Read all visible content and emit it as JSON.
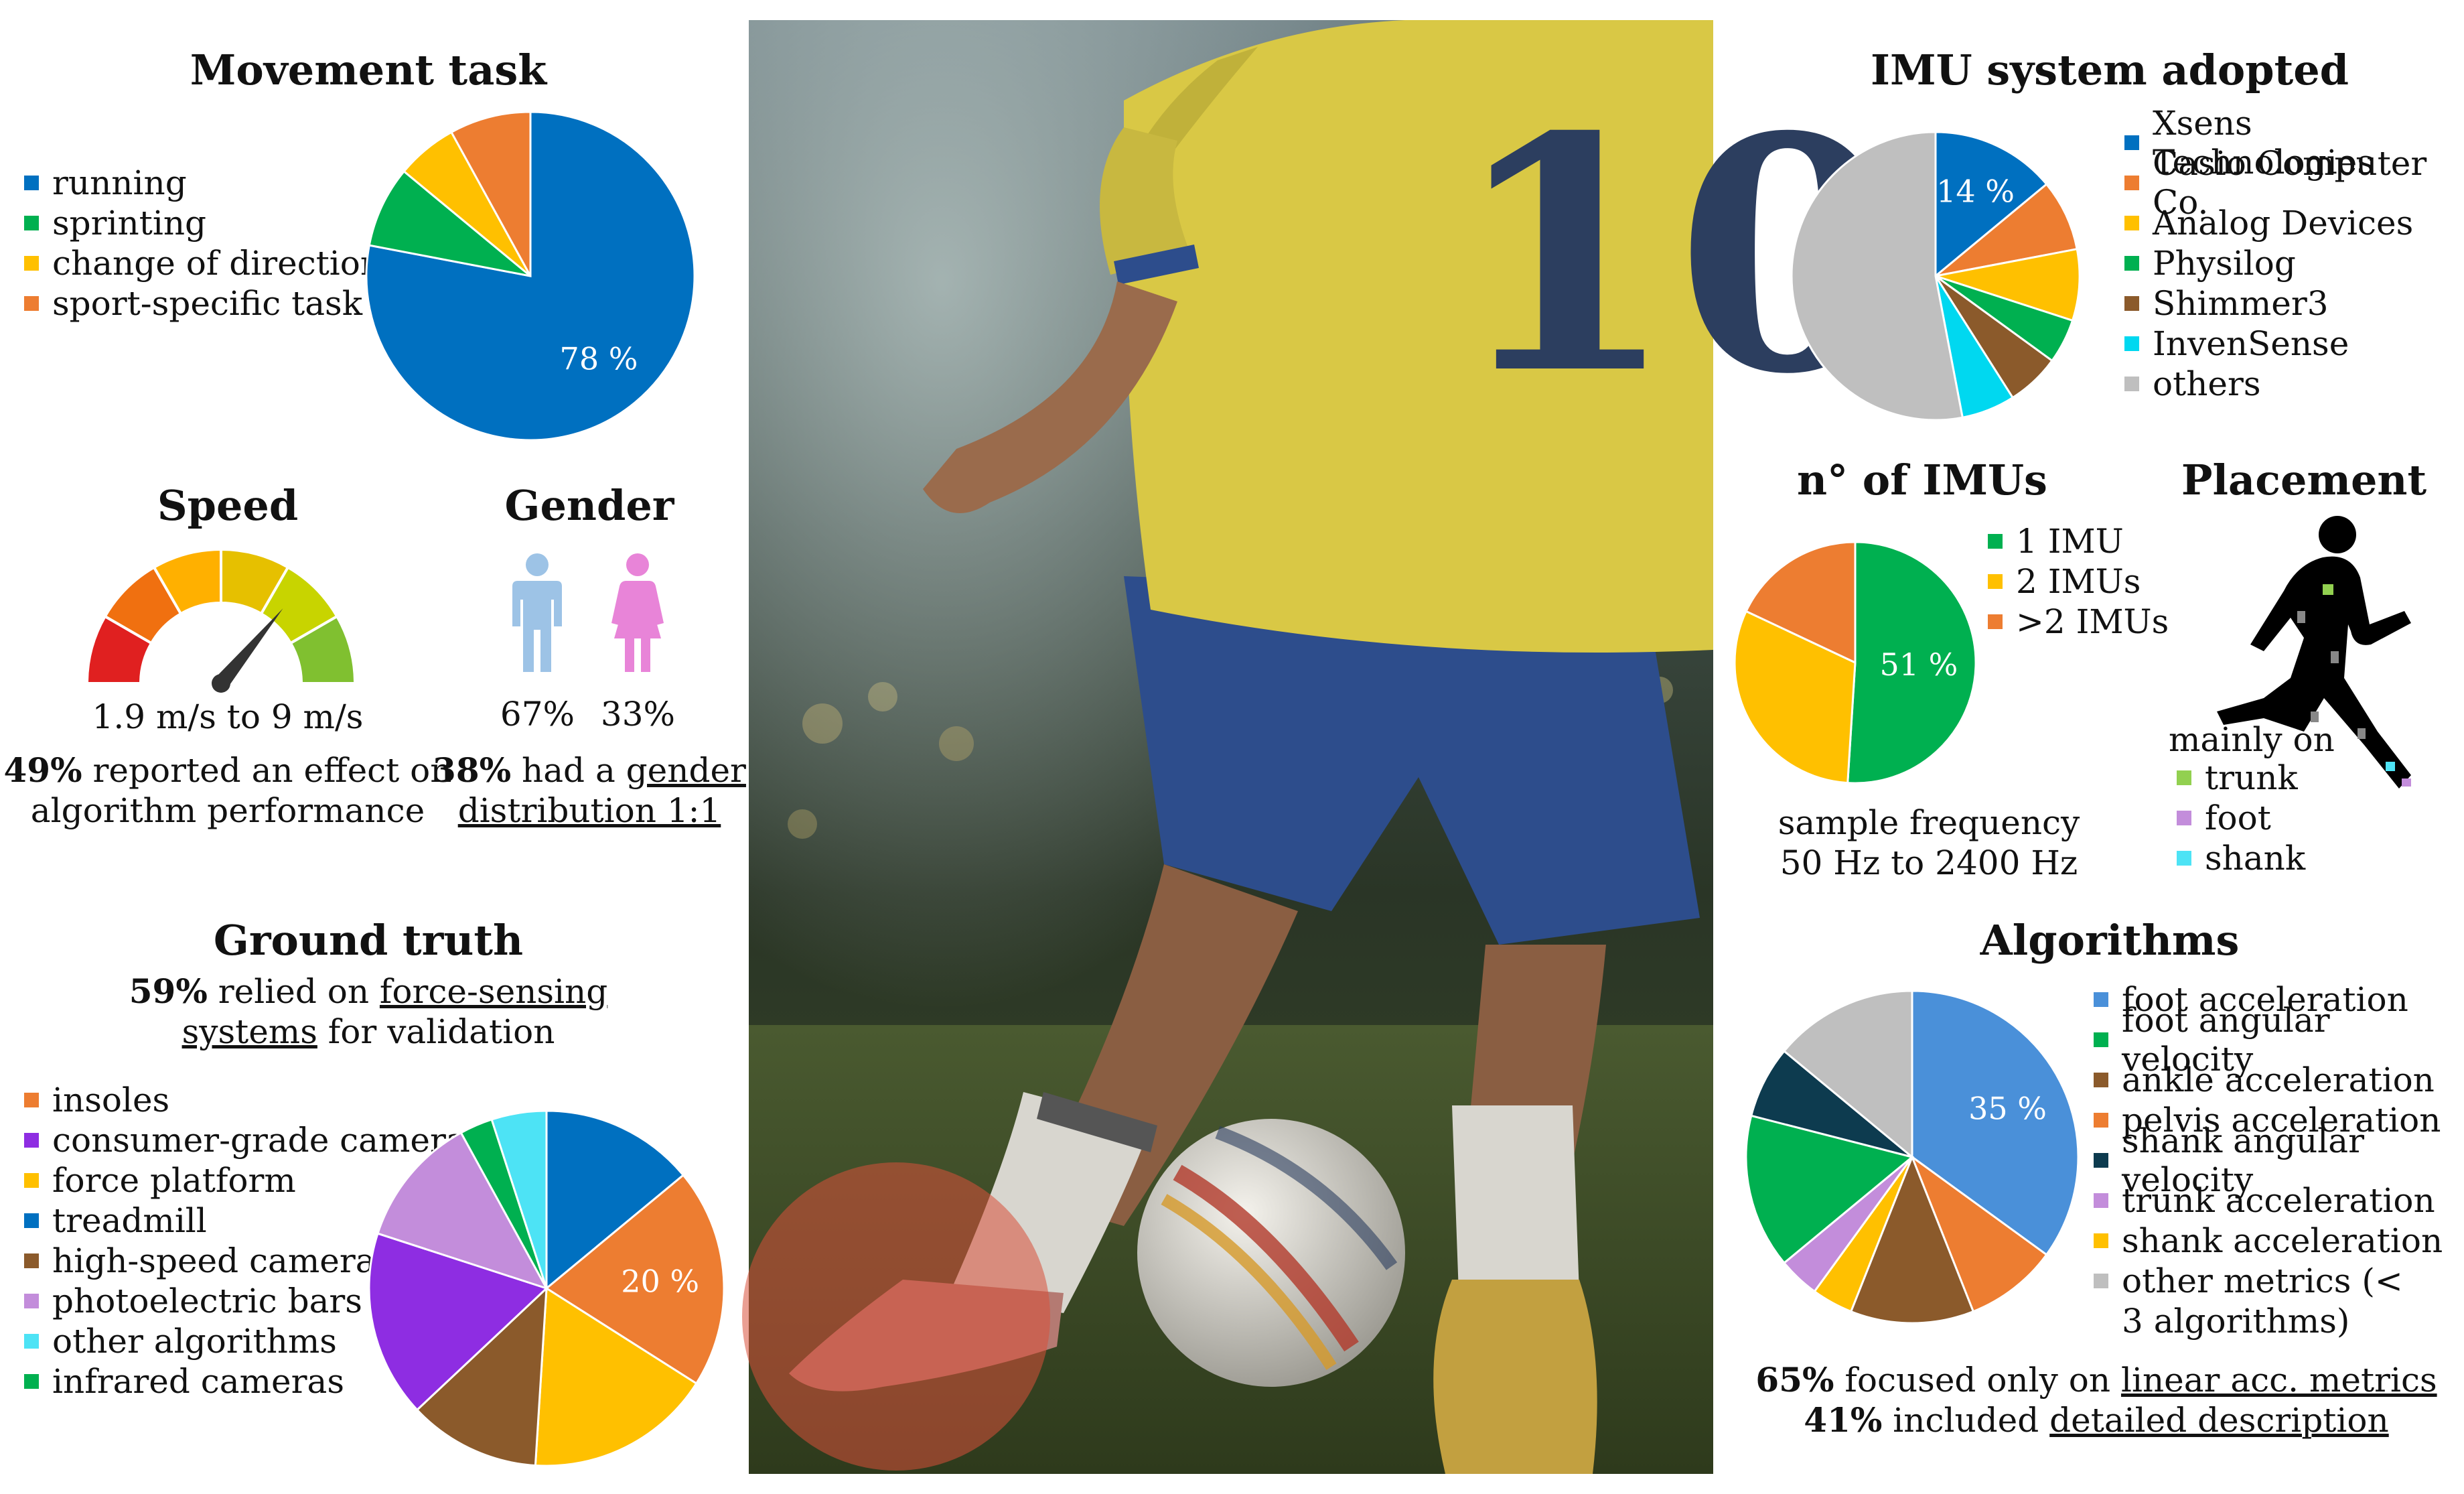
{
  "chart_data": [
    {
      "id": "movement",
      "type": "pie",
      "title": "Movement task",
      "categories": [
        "running",
        "sprinting",
        "change of direction",
        "sport-specific task"
      ],
      "values": [
        78,
        8,
        6,
        8
      ],
      "colors": [
        "#0070C0",
        "#00B050",
        "#FFC000",
        "#ED7D31"
      ],
      "labels": [
        {
          "index": 0,
          "text": "78 %"
        }
      ]
    },
    {
      "id": "speed",
      "type": "gauge",
      "title": "Speed",
      "caption": "1.9 m/s to 9 m/s",
      "segment_colors": [
        "#E02020",
        "#F07010",
        "#FFB000",
        "#E6C000",
        "#C8D400",
        "#80C030"
      ],
      "level": 0.72
    },
    {
      "id": "gender",
      "type": "pictogram",
      "title": "Gender",
      "categories": [
        "male",
        "female"
      ],
      "values": [
        67,
        33
      ],
      "value_labels": [
        "67%",
        "33%"
      ],
      "colors": [
        "#9DC3E6",
        "#E884D8"
      ]
    },
    {
      "id": "groundtruth",
      "type": "pie",
      "title": "Ground truth",
      "categories": [
        "insoles",
        "consumer-grade cameras",
        "force platform",
        "treadmill",
        "high-speed cameras",
        "photoelectric bars",
        "other algorithms",
        "infrared cameras"
      ],
      "values": [
        20,
        17,
        17,
        14,
        12,
        12,
        5,
        3
      ],
      "colors": [
        "#ED7D31",
        "#8E2DE2",
        "#FFC000",
        "#0070C0",
        "#8B5A2B",
        "#C38DDB",
        "#4DE3F5",
        "#00B050"
      ],
      "pie_order": [
        3,
        0,
        2,
        4,
        1,
        5,
        7,
        6
      ],
      "labels": [
        {
          "index": 0,
          "text": "20 %"
        }
      ]
    },
    {
      "id": "imu",
      "type": "pie",
      "title": "IMU system adopted",
      "categories": [
        "Xsens Technologies",
        "Casio Computer Co.",
        "Analog Devices",
        "Physilog",
        "Shimmer3",
        "InvenSense",
        "others"
      ],
      "values": [
        14,
        8,
        8,
        5,
        6,
        6,
        53
      ],
      "colors": [
        "#0070C0",
        "#ED7D31",
        "#FFC000",
        "#00B050",
        "#8B5A2B",
        "#00D8F0",
        "#BFBFBF"
      ],
      "labels": [
        {
          "index": 0,
          "text": "14 %"
        }
      ]
    },
    {
      "id": "nimus",
      "type": "pie",
      "title": "n° of IMUs",
      "categories": [
        "1 IMU",
        "2 IMUs",
        ">2 IMUs"
      ],
      "values": [
        51,
        31,
        18
      ],
      "colors": [
        "#00B050",
        "#FFC000",
        "#ED7D31"
      ],
      "labels": [
        {
          "index": 0,
          "text": "51 %"
        }
      ]
    },
    {
      "id": "algorithms",
      "type": "pie",
      "title": "Algorithms",
      "categories": [
        "foot acceleration",
        "foot angular velocity",
        "ankle acceleration",
        "pelvis acceleration",
        "shank angular velocity",
        "trunk acceleration",
        "shank acceleration",
        "other metrics (< 3 algorithms)"
      ],
      "values": [
        35,
        15,
        12,
        9,
        7,
        4,
        4,
        14
      ],
      "colors": [
        "#4A90D9",
        "#00B050",
        "#8B5A2B",
        "#ED7D31",
        "#0D3B4F",
        "#C38DDB",
        "#FFC000",
        "#BFBFBF"
      ],
      "pie_order": [
        0,
        3,
        2,
        6,
        5,
        1,
        4,
        7
      ],
      "labels": [
        {
          "index": 0,
          "text": "35 %"
        }
      ]
    }
  ],
  "speed": {
    "note_bold": "49%",
    "note_line1": " reported an effect on",
    "note_line2": "algorithm performance"
  },
  "gender": {
    "note_bold": "38%",
    "note_pre": " had a ",
    "note_u1": "gender",
    "note_u2": "distribution 1:1"
  },
  "groundtruth": {
    "note_bold": "59%",
    "note_pre": " relied on ",
    "note_u1": "force-sensing",
    "note_u2": "systems",
    "note_post": " for validation"
  },
  "nimus": {
    "freq_line1": "sample frequency",
    "freq_line2": "50 Hz to 2400 Hz"
  },
  "placement": {
    "title": "Placement",
    "caption": "mainly on",
    "items": [
      {
        "label": "trunk",
        "color": "#92D050"
      },
      {
        "label": "foot",
        "color": "#C38DDB"
      },
      {
        "label": "shank",
        "color": "#4DE3F5"
      }
    ]
  },
  "algorithms": {
    "note1_bold": "65%",
    "note1_pre": " focused only on ",
    "note1_u": "linear acc. metrics",
    "note2_bold": "41%",
    "note2_pre": " included ",
    "note2_u": "detailed description"
  },
  "photo": {
    "jersey_number": "10"
  }
}
